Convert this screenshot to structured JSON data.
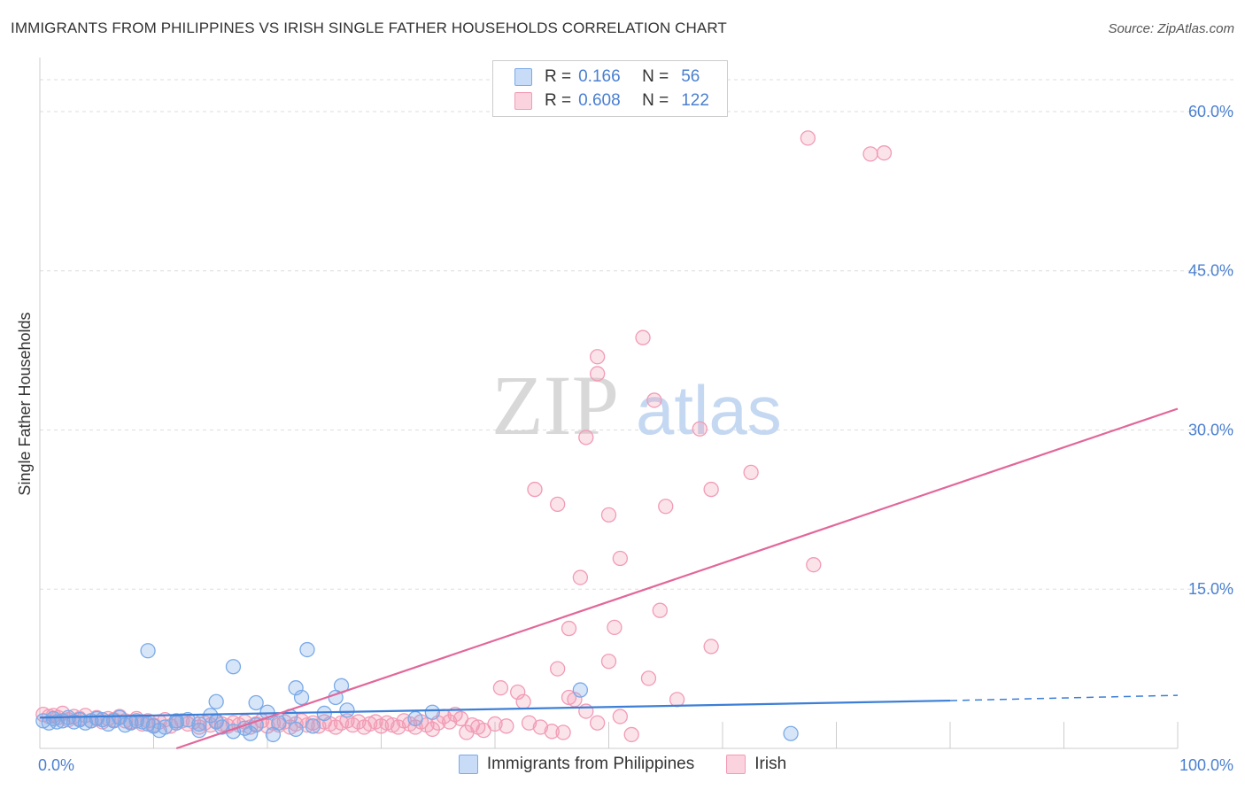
{
  "title": "IMMIGRANTS FROM PHILIPPINES VS IRISH SINGLE FATHER HOUSEHOLDS CORRELATION CHART",
  "source": "Source: ZipAtlas.com",
  "watermark": {
    "zip": "ZIP",
    "atlas": "atlas"
  },
  "legend": {
    "rows": [
      {
        "r_label": "R =",
        "r_value": "0.166",
        "n_label": "N =",
        "n_value": "56",
        "color": "#7aaae8",
        "fill": "#c9dcf7"
      },
      {
        "r_label": "R =",
        "r_value": "0.608",
        "n_label": "N =",
        "n_value": "122",
        "color": "#f29bb5",
        "fill": "#fbd3df"
      }
    ]
  },
  "bottom_legend": [
    "Immigrants from Philippines",
    "Irish"
  ],
  "chart_data": {
    "type": "scatter",
    "title": "IMMIGRANTS FROM PHILIPPINES VS IRISH SINGLE FATHER HOUSEHOLDS CORRELATION CHART",
    "xlabel": "",
    "ylabel": "Single Father Households",
    "xlim": [
      0,
      100
    ],
    "ylim": [
      0,
      64
    ],
    "x_tick_labels": [
      "0.0%",
      "100.0%"
    ],
    "y_ticks": [
      15,
      30,
      45,
      60
    ],
    "y_tick_labels": [
      "15.0%",
      "30.0%",
      "45.0%",
      "60.0%"
    ],
    "grid": true,
    "colors": {
      "blue": "#3d7fd6",
      "pink": "#e2679a",
      "blue_point": "#7aaae8",
      "pink_point": "#f29bb5"
    },
    "series": [
      {
        "name": "Immigrants from Philippines",
        "points": [
          [
            0.3,
            2.6
          ],
          [
            0.8,
            2.4
          ],
          [
            1.2,
            2.8
          ],
          [
            1.5,
            2.5
          ],
          [
            2.0,
            2.6
          ],
          [
            2.5,
            2.9
          ],
          [
            3.0,
            2.5
          ],
          [
            3.5,
            2.7
          ],
          [
            4.0,
            2.4
          ],
          [
            4.5,
            2.6
          ],
          [
            5.0,
            2.8
          ],
          [
            5.5,
            2.7
          ],
          [
            6.0,
            2.3
          ],
          [
            6.5,
            2.6
          ],
          [
            7.0,
            2.9
          ],
          [
            7.5,
            2.2
          ],
          [
            8.0,
            2.4
          ],
          [
            8.5,
            2.6
          ],
          [
            9.0,
            2.5
          ],
          [
            9.5,
            2.3
          ],
          [
            10.0,
            2.1
          ],
          [
            10.5,
            1.7
          ],
          [
            11.0,
            2.0
          ],
          [
            12.0,
            2.4
          ],
          [
            13.0,
            2.7
          ],
          [
            14.0,
            2.3
          ],
          [
            15.0,
            3.1
          ],
          [
            15.5,
            2.5
          ],
          [
            16.0,
            2.0
          ],
          [
            17.0,
            1.6
          ],
          [
            18.0,
            1.9
          ],
          [
            18.5,
            1.4
          ],
          [
            19.0,
            2.2
          ],
          [
            20.0,
            3.4
          ],
          [
            21.0,
            2.4
          ],
          [
            22.0,
            3.0
          ],
          [
            23.0,
            4.8
          ],
          [
            24.0,
            2.1
          ],
          [
            25.0,
            3.3
          ],
          [
            26.0,
            4.8
          ],
          [
            27.0,
            3.6
          ],
          [
            9.5,
            9.2
          ],
          [
            17.0,
            7.7
          ],
          [
            19.0,
            4.3
          ],
          [
            15.5,
            4.4
          ],
          [
            23.5,
            9.3
          ],
          [
            22.5,
            5.7
          ],
          [
            26.5,
            5.9
          ],
          [
            20.5,
            1.3
          ],
          [
            22.5,
            1.8
          ],
          [
            33.0,
            2.8
          ],
          [
            34.5,
            3.4
          ],
          [
            47.5,
            5.5
          ],
          [
            66.0,
            1.4
          ],
          [
            14.0,
            1.7
          ],
          [
            12.0,
            2.6
          ]
        ]
      },
      {
        "name": "Irish",
        "points": [
          [
            0.3,
            3.2
          ],
          [
            0.8,
            3.0
          ],
          [
            1.2,
            3.1
          ],
          [
            1.6,
            2.9
          ],
          [
            2.0,
            3.3
          ],
          [
            2.5,
            2.7
          ],
          [
            3.0,
            3.0
          ],
          [
            3.5,
            2.8
          ],
          [
            4.0,
            3.1
          ],
          [
            4.5,
            2.6
          ],
          [
            5.0,
            2.9
          ],
          [
            5.5,
            2.5
          ],
          [
            6.0,
            2.8
          ],
          [
            6.5,
            2.7
          ],
          [
            7.0,
            3.0
          ],
          [
            7.5,
            2.6
          ],
          [
            8.0,
            2.5
          ],
          [
            8.5,
            2.8
          ],
          [
            9.0,
            2.3
          ],
          [
            9.5,
            2.6
          ],
          [
            10.0,
            2.2
          ],
          [
            10.5,
            2.5
          ],
          [
            11.0,
            2.7
          ],
          [
            11.5,
            2.1
          ],
          [
            12.0,
            2.4
          ],
          [
            12.5,
            2.6
          ],
          [
            13.0,
            2.3
          ],
          [
            13.5,
            2.5
          ],
          [
            14.0,
            2.0
          ],
          [
            14.5,
            2.4
          ],
          [
            15.0,
            2.2
          ],
          [
            15.5,
            2.6
          ],
          [
            16.0,
            2.3
          ],
          [
            16.5,
            2.1
          ],
          [
            17.0,
            2.4
          ],
          [
            17.5,
            2.2
          ],
          [
            18.0,
            2.5
          ],
          [
            18.5,
            2.0
          ],
          [
            19.0,
            2.3
          ],
          [
            19.5,
            2.6
          ],
          [
            20.0,
            2.1
          ],
          [
            20.5,
            2.4
          ],
          [
            21.0,
            2.2
          ],
          [
            21.5,
            2.5
          ],
          [
            22.0,
            2.0
          ],
          [
            22.5,
            2.3
          ],
          [
            23.0,
            2.6
          ],
          [
            23.5,
            2.2
          ],
          [
            24.0,
            2.4
          ],
          [
            24.5,
            2.1
          ],
          [
            25.0,
            2.5
          ],
          [
            25.5,
            2.3
          ],
          [
            26.0,
            2.0
          ],
          [
            26.5,
            2.4
          ],
          [
            27.0,
            2.6
          ],
          [
            27.5,
            2.2
          ],
          [
            28.0,
            2.5
          ],
          [
            28.5,
            2.0
          ],
          [
            29.0,
            2.3
          ],
          [
            29.5,
            2.5
          ],
          [
            30.0,
            2.1
          ],
          [
            30.5,
            2.4
          ],
          [
            31.0,
            2.2
          ],
          [
            31.5,
            2.0
          ],
          [
            32.0,
            2.6
          ],
          [
            32.5,
            2.3
          ],
          [
            33.0,
            2.0
          ],
          [
            33.5,
            2.5
          ],
          [
            34.0,
            2.2
          ],
          [
            34.5,
            1.8
          ],
          [
            35.0,
            2.4
          ],
          [
            35.5,
            3.0
          ],
          [
            36.0,
            2.5
          ],
          [
            36.5,
            3.2
          ],
          [
            37.0,
            2.8
          ],
          [
            37.5,
            1.5
          ],
          [
            38.0,
            2.2
          ],
          [
            38.5,
            2.0
          ],
          [
            39.0,
            1.7
          ],
          [
            40.0,
            2.3
          ],
          [
            40.5,
            5.7
          ],
          [
            41.0,
            2.1
          ],
          [
            42.0,
            5.3
          ],
          [
            42.5,
            4.4
          ],
          [
            43.0,
            2.4
          ],
          [
            44.0,
            2.0
          ],
          [
            45.0,
            1.6
          ],
          [
            45.5,
            7.5
          ],
          [
            46.0,
            1.5
          ],
          [
            46.5,
            4.8
          ],
          [
            47.0,
            4.6
          ],
          [
            48.0,
            3.5
          ],
          [
            49.0,
            2.4
          ],
          [
            50.0,
            8.2
          ],
          [
            51.0,
            3.0
          ],
          [
            52.0,
            1.3
          ],
          [
            53.5,
            6.6
          ],
          [
            56.0,
            4.6
          ],
          [
            59.0,
            9.6
          ],
          [
            62.5,
            26.0
          ],
          [
            68.0,
            17.3
          ],
          [
            43.5,
            24.4
          ],
          [
            45.5,
            23.0
          ],
          [
            47.5,
            16.1
          ],
          [
            46.5,
            11.3
          ],
          [
            49.0,
            35.3
          ],
          [
            49.0,
            36.9
          ],
          [
            48.0,
            29.3
          ],
          [
            50.0,
            22.0
          ],
          [
            51.0,
            17.9
          ],
          [
            50.5,
            11.4
          ],
          [
            53.0,
            38.7
          ],
          [
            54.0,
            32.8
          ],
          [
            55.0,
            22.8
          ],
          [
            54.5,
            13.0
          ],
          [
            58.0,
            30.1
          ],
          [
            59.0,
            24.4
          ],
          [
            67.5,
            57.5
          ],
          [
            73.0,
            56.0
          ],
          [
            74.2,
            56.1
          ]
        ]
      }
    ],
    "trendlines": [
      {
        "series": "Immigrants from Philippines",
        "x": [
          0,
          80
        ],
        "y": [
          2.9,
          4.5
        ],
        "dashed_to": [
          100,
          5.0
        ]
      },
      {
        "series": "Irish",
        "x": [
          12,
          100
        ],
        "y": [
          0,
          32.0
        ]
      }
    ]
  }
}
